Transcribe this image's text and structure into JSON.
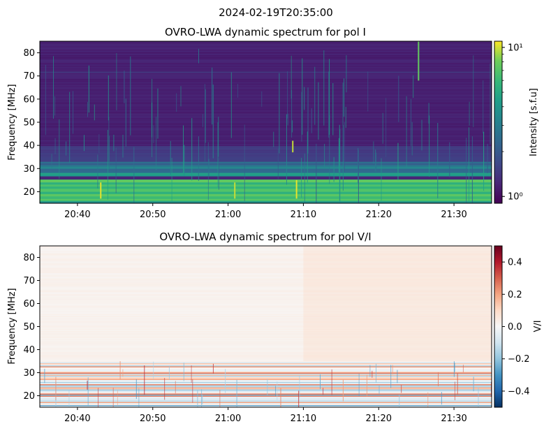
{
  "suptitle": "2024-02-19T20:35:00",
  "chart_data": [
    {
      "type": "heatmap",
      "title": "OVRO-LWA dynamic spectrum for pol I",
      "xlabel": "",
      "ylabel": "Frequency [MHz]",
      "x_range": [
        "20:35",
        "21:35"
      ],
      "x_ticks": [
        "20:40",
        "20:50",
        "21:00",
        "21:10",
        "21:20",
        "21:30"
      ],
      "y_range": [
        15,
        85
      ],
      "y_ticks": [
        20,
        30,
        40,
        50,
        60,
        70,
        80
      ],
      "colormap": "viridis",
      "color_scale": "log",
      "colorbar": {
        "label": "Intensity [s.f.u]",
        "range": [
          0.9,
          11
        ],
        "ticks": [
          {
            "label": "10⁰",
            "value": 1
          },
          {
            "label": "10¹",
            "value": 10
          }
        ]
      },
      "features": [
        {
          "freq_range": [
            15,
            27
          ],
          "level": "high"
        },
        {
          "freq_range": [
            27,
            33
          ],
          "level": "medium"
        },
        {
          "freq_range": [
            33,
            85
          ],
          "level": "low"
        },
        {
          "freq_range": [
            25.5,
            27
          ],
          "level": "very low"
        },
        {
          "time": "21:25",
          "freq_range": [
            68,
            85
          ],
          "level": "high"
        },
        {
          "time": "21:08",
          "freq_range": [
            38,
            42
          ],
          "level": "high"
        }
      ],
      "grid": false
    },
    {
      "type": "heatmap",
      "title": "OVRO-LWA dynamic spectrum for pol V/I",
      "xlabel": "",
      "ylabel": "Frequency [MHz]",
      "x_range": [
        "20:35",
        "21:35"
      ],
      "x_ticks": [
        "20:40",
        "20:50",
        "21:00",
        "21:10",
        "21:20",
        "21:30"
      ],
      "y_range": [
        15,
        85
      ],
      "y_ticks": [
        20,
        30,
        40,
        50,
        60,
        70,
        80
      ],
      "colormap": "RdBu_r",
      "color_scale": "linear",
      "colorbar": {
        "label": "V/I",
        "range": [
          -0.5,
          0.5
        ],
        "ticks": [
          {
            "label": "0.4",
            "value": 0.4
          },
          {
            "label": "0.2",
            "value": 0.2
          },
          {
            "label": "0.0",
            "value": 0.0
          },
          {
            "label": "−0.2",
            "value": -0.2
          },
          {
            "label": "−0.4",
            "value": -0.4
          }
        ]
      },
      "features": [
        {
          "freq_range": [
            15,
            35
          ],
          "level": "mixed"
        },
        {
          "freq_range": [
            35,
            85
          ],
          "level": "near zero, slightly positive"
        }
      ],
      "grid": false
    }
  ]
}
